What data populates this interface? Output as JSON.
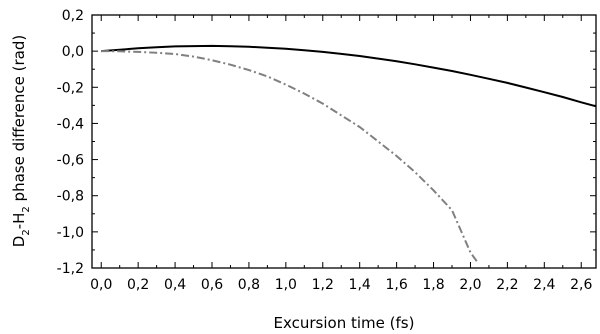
{
  "chart_data": {
    "type": "line",
    "xlabel": "Excursion time (fs)",
    "ylabel": {
      "parts": [
        {
          "text": "D",
          "sub": false
        },
        {
          "text": "2",
          "sub": true
        },
        {
          "text": "-H",
          "sub": false
        },
        {
          "text": "2",
          "sub": true
        },
        {
          "text": " phase difference (rad)",
          "sub": false
        }
      ]
    },
    "xlim": [
      -0.05,
      2.68
    ],
    "ylim": [
      -1.2,
      0.2
    ],
    "x_ticks": [
      0.0,
      0.2,
      0.4,
      0.6,
      0.8,
      1.0,
      1.2,
      1.4,
      1.6,
      1.8,
      2.0,
      2.2,
      2.4,
      2.6
    ],
    "x_tick_labels": [
      "0,0",
      "0,2",
      "0,4",
      "0,6",
      "0,8",
      "1,0",
      "1,2",
      "1,4",
      "1,6",
      "1,8",
      "2,0",
      "2,2",
      "2,4",
      "2,6"
    ],
    "y_ticks": [
      0.2,
      0.0,
      -0.2,
      -0.4,
      -0.6,
      -0.8,
      -1.0,
      -1.2
    ],
    "y_tick_labels": [
      "0,2",
      "0,0",
      "-0,2",
      "-0,4",
      "-0,6",
      "-0,8",
      "-1,0",
      "-1,2"
    ],
    "grid": false,
    "series": [
      {
        "style": "solid",
        "color": "#000000",
        "x": [
          0.0,
          0.1,
          0.2,
          0.3,
          0.4,
          0.5,
          0.6,
          0.7,
          0.8,
          0.9,
          1.0,
          1.1,
          1.2,
          1.3,
          1.4,
          1.5,
          1.6,
          1.7,
          1.8,
          1.9,
          2.0,
          2.1,
          2.2,
          2.3,
          2.4,
          2.5,
          2.6,
          2.68
        ],
        "y": [
          0.0,
          0.008,
          0.016,
          0.022,
          0.026,
          0.028,
          0.029,
          0.027,
          0.024,
          0.019,
          0.013,
          0.005,
          -0.004,
          -0.015,
          -0.027,
          -0.041,
          -0.056,
          -0.073,
          -0.091,
          -0.11,
          -0.131,
          -0.153,
          -0.176,
          -0.201,
          -0.227,
          -0.254,
          -0.283,
          -0.305
        ]
      },
      {
        "style": "dashdot",
        "color": "#808080",
        "x": [
          0.0,
          0.1,
          0.2,
          0.3,
          0.4,
          0.5,
          0.6,
          0.7,
          0.8,
          0.9,
          1.0,
          1.1,
          1.2,
          1.3,
          1.4,
          1.5,
          1.6,
          1.7,
          1.8,
          1.9,
          2.0,
          2.04
        ],
        "y": [
          0.0,
          -0.001,
          -0.004,
          -0.009,
          -0.016,
          -0.03,
          -0.05,
          -0.075,
          -0.105,
          -0.14,
          -0.185,
          -0.235,
          -0.29,
          -0.355,
          -0.42,
          -0.5,
          -0.58,
          -0.67,
          -0.77,
          -0.88,
          -1.115,
          -1.17
        ]
      }
    ]
  }
}
